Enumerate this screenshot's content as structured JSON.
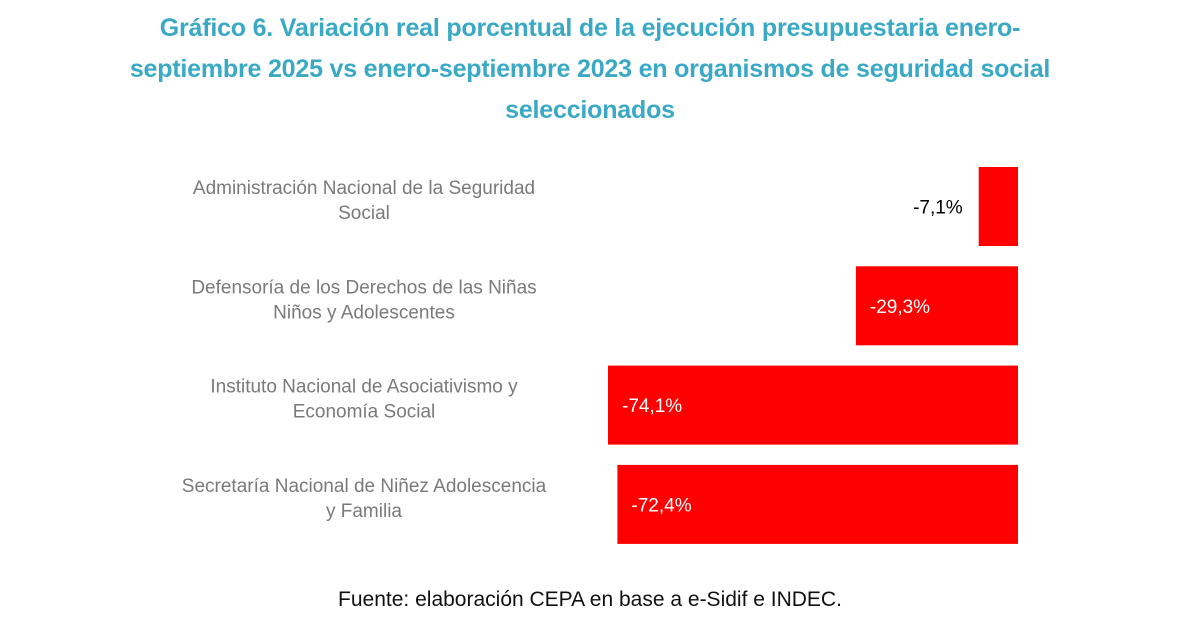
{
  "chart_data": {
    "type": "bar",
    "orientation": "horizontal",
    "title_lines": [
      "Gráfico 6. Variación real porcentual de la ejecución presupuestaria enero-",
      "septiembre 2025 vs enero-septiembre 2023 en organismos de seguridad social",
      "seleccionados"
    ],
    "categories": [
      [
        "Administración Nacional de la Seguridad",
        "Social"
      ],
      [
        "Defensoría de los Derechos de las Niñas",
        "Niños y Adolescentes"
      ],
      [
        "Instituto Nacional de Asociativismo y",
        "Economía Social"
      ],
      [
        "Secretaría Nacional de Niñez Adolescencia",
        "y Familia"
      ]
    ],
    "values": [
      -7.1,
      -29.3,
      -74.1,
      -72.4
    ],
    "data_labels": [
      "-7,1%",
      "-29,3%",
      "-74,1%",
      "-72,4%"
    ],
    "label_colors": [
      "#000000",
      "#ffffff",
      "#ffffff",
      "#ffffff"
    ],
    "bar_color": "#FF0000",
    "xlim": [
      -74.1,
      0
    ],
    "xlabel": "",
    "ylabel": "",
    "grid": false,
    "legend": "none",
    "source": "Fuente: elaboración CEPA en base a e-Sidif e INDEC."
  }
}
